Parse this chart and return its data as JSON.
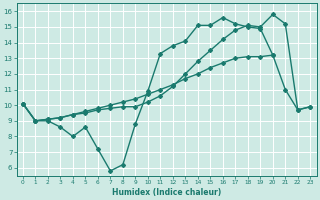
{
  "line1": {
    "x": [
      0,
      1,
      2,
      3,
      4,
      5,
      6,
      7,
      8,
      9,
      10,
      11,
      12,
      13,
      14,
      15,
      16,
      17,
      18,
      19,
      20,
      21,
      22,
      23
    ],
    "y": [
      10.1,
      9.0,
      9.1,
      9.2,
      9.4,
      9.5,
      9.7,
      9.8,
      9.9,
      9.9,
      10.2,
      10.6,
      11.2,
      12.0,
      12.8,
      13.5,
      14.2,
      14.8,
      15.1,
      15.0,
      15.8,
      15.2,
      9.7,
      9.9
    ],
    "color": "#1a7a6e",
    "marker": "D",
    "markersize": 2,
    "linewidth": 1.0
  },
  "line2": {
    "x": [
      0,
      1,
      2,
      3,
      4,
      5,
      6,
      7,
      8,
      9,
      10,
      11,
      12,
      13,
      14,
      15,
      16,
      17,
      18,
      19,
      20
    ],
    "y": [
      10.1,
      9.0,
      9.1,
      9.2,
      9.4,
      9.6,
      9.8,
      10.0,
      10.2,
      10.4,
      10.7,
      11.0,
      11.3,
      11.7,
      12.0,
      12.4,
      12.7,
      13.0,
      13.1,
      13.1,
      13.2
    ],
    "color": "#1a7a6e",
    "marker": "D",
    "markersize": 2,
    "linewidth": 1.0
  },
  "line3": {
    "x": [
      0,
      1,
      2,
      3,
      4,
      5,
      6,
      7,
      8,
      9,
      10,
      11,
      12,
      13,
      14,
      15,
      16,
      17,
      18,
      19,
      20,
      21,
      22,
      23
    ],
    "y": [
      10.1,
      9.0,
      9.0,
      8.6,
      8.0,
      8.6,
      7.2,
      5.8,
      6.2,
      8.8,
      10.9,
      13.3,
      13.8,
      14.1,
      15.1,
      15.1,
      15.6,
      15.2,
      15.0,
      14.9,
      13.2,
      11.0,
      9.7,
      9.9
    ],
    "color": "#1a7a6e",
    "marker": "D",
    "markersize": 2,
    "linewidth": 1.0
  },
  "xlabel": "Humidex (Indice chaleur)",
  "xlim": [
    -0.5,
    23.5
  ],
  "ylim": [
    5.5,
    16.5
  ],
  "yticks": [
    6,
    7,
    8,
    9,
    10,
    11,
    12,
    13,
    14,
    15,
    16
  ],
  "xticks": [
    0,
    1,
    2,
    3,
    4,
    5,
    6,
    7,
    8,
    9,
    10,
    11,
    12,
    13,
    14,
    15,
    16,
    17,
    18,
    19,
    20,
    21,
    22,
    23
  ],
  "bg_color": "#ceeae4",
  "grid_color": "#b0d8d0",
  "line_color": "#1a7a6e",
  "tick_color": "#1a7a6e"
}
